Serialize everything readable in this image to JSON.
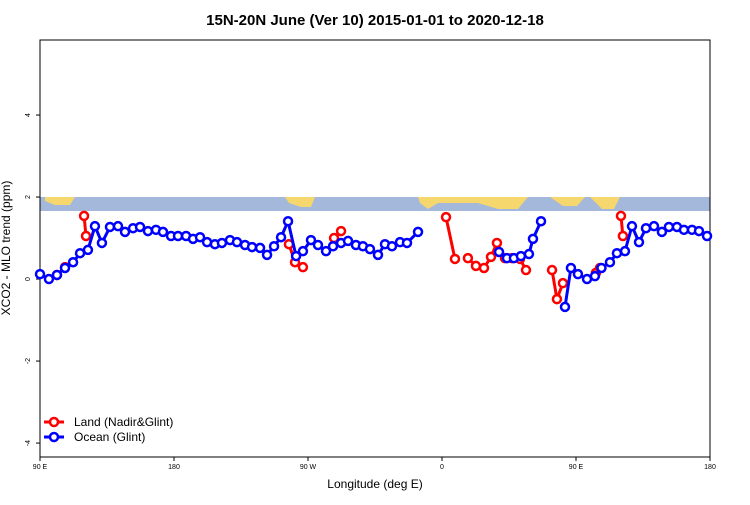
{
  "chart_data": {
    "type": "line",
    "title": "15N-20N June (Ver 10)   2015-01-01 to 2020-12-18",
    "x_label": "Longitude (deg E)",
    "y_label": "XCO2 - MLO trend (ppm)",
    "xlim": [
      90,
      540
    ],
    "xticks": [
      {
        "value": 90,
        "label": "90 E"
      },
      {
        "value": 180,
        "label": "180"
      },
      {
        "value": 270,
        "label": "90 W"
      },
      {
        "value": 360,
        "label": "0"
      },
      {
        "value": 450,
        "label": "90 E"
      },
      {
        "value": 540,
        "label": "180"
      }
    ],
    "ylim": [
      -4.34,
      5.83
    ],
    "yticks": [
      -4,
      -2,
      0,
      2,
      4
    ],
    "legend": "bottom-left",
    "series": [
      {
        "name": "Land (Nadir&Glint)",
        "color": "#ff0000",
        "x": [
          101.4,
          106.8,
          null,
          119.6,
          120.9,
          null,
          257.2,
          261.3,
          266.6,
          null,
          287.5,
          292.2,
          null,
          362.7,
          368.7,
          null,
          377.4,
          382.8,
          388.2,
          392.9,
          396.9,
          402.3,
          407.0,
          412.4,
          416.4,
          null,
          433.9,
          437.2,
          441.2,
          null,
          463.4,
          466.1,
          null,
          480.2,
          481.5
        ],
        "values": [
          0.1,
          0.29,
          null,
          1.54,
          1.05,
          null,
          0.85,
          0.41,
          0.29,
          null,
          1.0,
          1.17,
          null,
          1.51,
          0.49,
          null,
          0.51,
          0.32,
          0.27,
          0.54,
          0.88,
          0.51,
          0.51,
          0.49,
          0.22,
          null,
          0.22,
          -0.49,
          -0.1,
          null,
          0.15,
          0.27,
          null,
          1.54,
          1.05
        ]
      },
      {
        "name": "Ocean (Glint)",
        "color": "#0000ff",
        "x": [
          90,
          96.0,
          101.4,
          106.8,
          112.2,
          116.9,
          122.2,
          126.9,
          131.6,
          137.0,
          142.4,
          147.1,
          152.5,
          157.2,
          162.5,
          167.9,
          172.6,
          178.0,
          182.7,
          188.1,
          192.8,
          197.5,
          202.2,
          207.5,
          212.2,
          217.6,
          222.3,
          227.7,
          232.4,
          237.8,
          242.5,
          247.2,
          251.9,
          256.6,
          262.0,
          266.6,
          272.0,
          276.7,
          282.1,
          286.8,
          292.2,
          296.9,
          302.2,
          306.9,
          311.6,
          317.0,
          321.7,
          326.4,
          331.8,
          336.5,
          343.9,
          null,
          398.3,
          403.6,
          408.3,
          413.0,
          418.4,
          421.1,
          426.5,
          null,
          442.6,
          446.6,
          451.3,
          457.4,
          462.7,
          467.1,
          472.8,
          477.5,
          482.9,
          487.6,
          492.3,
          497.0,
          502.4,
          507.7,
          512.4,
          517.8,
          522.5,
          527.9,
          532.6,
          538.0
        ],
        "values": [
          0.12,
          0,
          0.1,
          0.27,
          0.41,
          0.63,
          0.71,
          1.29,
          0.88,
          1.27,
          1.29,
          1.15,
          1.24,
          1.27,
          1.17,
          1.2,
          1.15,
          1.05,
          1.05,
          1.05,
          0.98,
          1.02,
          0.9,
          0.85,
          0.88,
          0.95,
          0.9,
          0.83,
          0.78,
          0.76,
          0.59,
          0.8,
          1.02,
          1.41,
          0.56,
          0.68,
          0.95,
          0.83,
          0.68,
          0.8,
          0.88,
          0.93,
          0.83,
          0.8,
          0.73,
          0.59,
          0.85,
          0.8,
          0.9,
          0.88,
          1.15,
          null,
          0.66,
          0.51,
          0.51,
          0.56,
          0.61,
          0.98,
          1.41,
          null,
          -0.68,
          0.27,
          0.12,
          0,
          0.07,
          0.27,
          0.41,
          0.63,
          0.68,
          1.29,
          0.9,
          1.24,
          1.29,
          1.15,
          1.27,
          1.27,
          1.2,
          1.2,
          1.17,
          1.05
        ]
      }
    ]
  }
}
